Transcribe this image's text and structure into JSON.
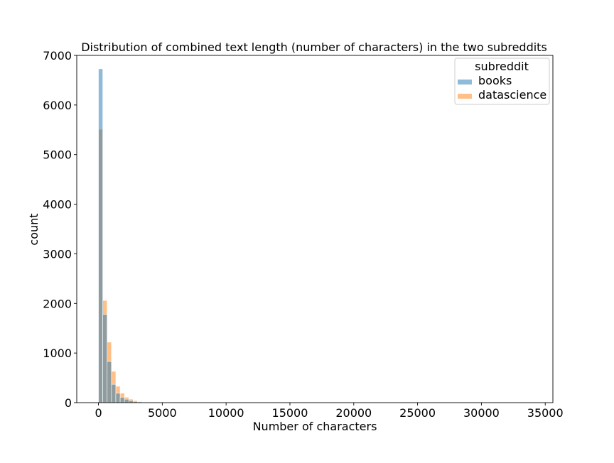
{
  "chart_data": {
    "type": "histogram",
    "title": "Distribution of combined text length (number of characters) in the two subreddits",
    "xlabel": "Number of characters",
    "ylabel": "count",
    "xlim": [
      -1700,
      35600
    ],
    "ylim": [
      0,
      7000
    ],
    "x_ticks": [
      0,
      5000,
      10000,
      15000,
      20000,
      25000,
      30000,
      35000
    ],
    "y_ticks": [
      0,
      1000,
      2000,
      3000,
      4000,
      5000,
      6000,
      7000
    ],
    "bin_width": 340,
    "bin_start": 0,
    "legend": {
      "title": "subreddit",
      "position": "top-right",
      "entries": [
        "books",
        "datascience"
      ]
    },
    "series": [
      {
        "name": "books",
        "color": "#1f77b4",
        "values": [
          6730,
          1780,
          830,
          370,
          190,
          110,
          70,
          40,
          25,
          15,
          10,
          8,
          6,
          5,
          4,
          3,
          2,
          2,
          1,
          1,
          1,
          1,
          1,
          1
        ]
      },
      {
        "name": "datascience",
        "color": "#ff7f0e",
        "values": [
          5510,
          2060,
          1220,
          630,
          330,
          190,
          110,
          70,
          40,
          25,
          15,
          10,
          8,
          6,
          4,
          3,
          2,
          2,
          1,
          1,
          1,
          1,
          1,
          1
        ]
      }
    ],
    "overlap_color": "#8e9aa3"
  }
}
